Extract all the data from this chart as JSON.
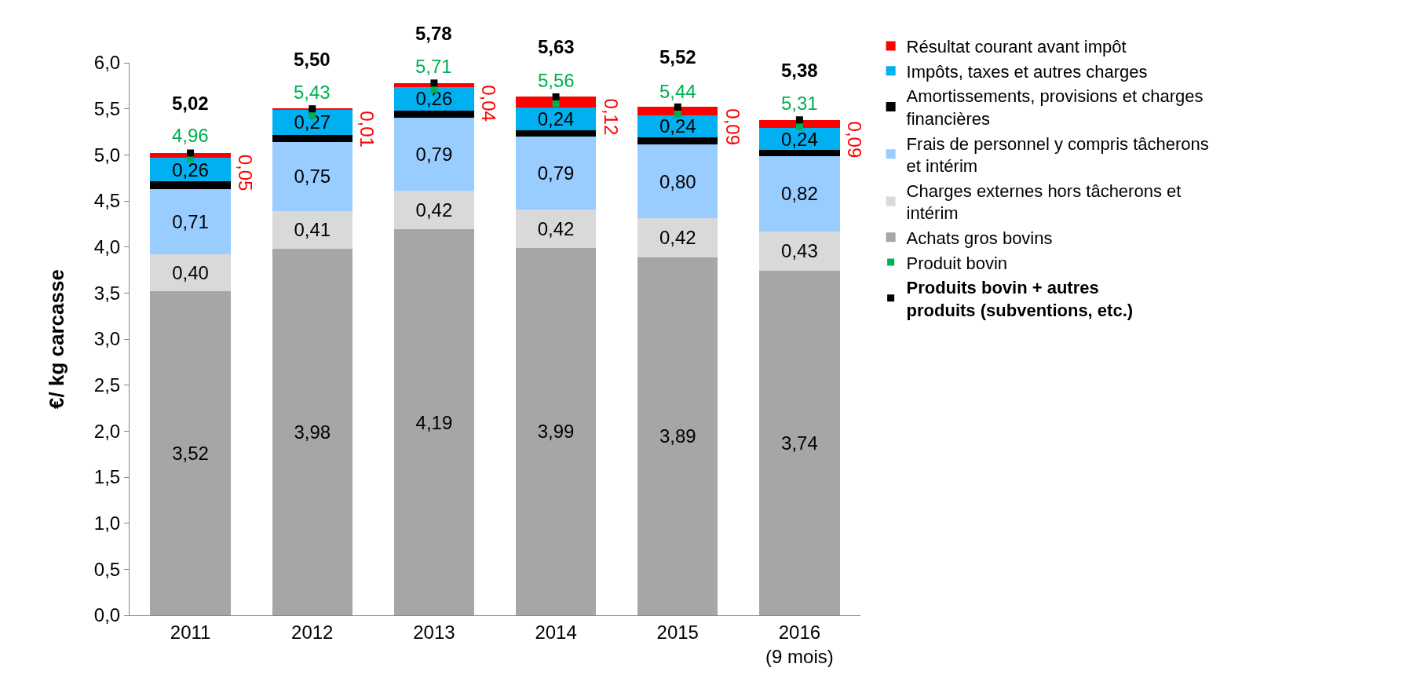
{
  "chart_data": {
    "type": "bar",
    "stacked": true,
    "ylabel": "€/ kg carcasse",
    "categories": [
      "2011",
      "2012",
      "2013",
      "2014",
      "2015",
      "2016\n(9 mois)"
    ],
    "ylim": [
      0,
      6
    ],
    "yticks": [
      {
        "value": 0,
        "label": "0,0"
      },
      {
        "value": 0.5,
        "label": "0,5"
      },
      {
        "value": 1,
        "label": "1,0"
      },
      {
        "value": 1.5,
        "label": "1,5"
      },
      {
        "value": 2,
        "label": "2,0"
      },
      {
        "value": 2.5,
        "label": "2,5"
      },
      {
        "value": 3,
        "label": "3,0"
      },
      {
        "value": 3.5,
        "label": "3,5"
      },
      {
        "value": 4,
        "label": "4,0"
      },
      {
        "value": 4.5,
        "label": "4,5"
      },
      {
        "value": 5,
        "label": "5,0"
      },
      {
        "value": 5.5,
        "label": "5,5"
      },
      {
        "value": 6,
        "label": "6,0"
      }
    ],
    "grid": false,
    "legend": "right",
    "series": [
      {
        "name": "Achats gros bovins",
        "color": "#a6a6a6",
        "values": [
          3.52,
          3.98,
          4.19,
          3.99,
          3.89,
          3.74
        ],
        "value_labels": [
          "3,52",
          "3,98",
          "4,19",
          "3,99",
          "3,89",
          "3,74"
        ]
      },
      {
        "name": "Charges externes hors tâcherons et intérim",
        "color": "#d9d9d9",
        "values": [
          0.4,
          0.41,
          0.42,
          0.42,
          0.42,
          0.43
        ],
        "value_labels": [
          "0,40",
          "0,41",
          "0,42",
          "0,42",
          "0,42",
          "0,43"
        ]
      },
      {
        "name": "Frais de personnel y compris tâcherons et intérim",
        "color": "#99ccff",
        "values": [
          0.71,
          0.75,
          0.79,
          0.79,
          0.8,
          0.82
        ],
        "value_labels": [
          "0,71",
          "0,75",
          "0,79",
          "0,79",
          "0,80",
          "0,82"
        ]
      },
      {
        "name": "Amortissements, provisions et charges financières",
        "color": "#000000",
        "values": [
          0.08,
          0.08,
          0.08,
          0.07,
          0.08,
          0.06
        ]
      },
      {
        "name": "Impôts, taxes et autres charges",
        "color": "#00b0f0",
        "values": [
          0.26,
          0.27,
          0.26,
          0.24,
          0.24,
          0.24
        ],
        "value_labels": [
          "0,26",
          "0,27",
          "0,26",
          "0,24",
          "0,24",
          "0,24"
        ]
      },
      {
        "name": "Résultat courant avant impôt",
        "color": "#ff0000",
        "values": [
          0.05,
          0.01,
          0.04,
          0.12,
          0.09,
          0.09
        ],
        "value_labels": [
          "0,05",
          "0,01",
          "0,04",
          "0,12",
          "0,09",
          "0,09"
        ]
      },
      {
        "name": "Produit bovin",
        "type": "scatter",
        "color": "#00b050",
        "values": [
          4.96,
          5.43,
          5.71,
          5.56,
          5.44,
          5.31
        ],
        "value_labels": [
          "4,96",
          "5,43",
          "5,71",
          "5,56",
          "5,44",
          "5,31"
        ]
      },
      {
        "name": "Produits bovin + autres produits (subventions, etc.)",
        "type": "scatter",
        "color": "#000000",
        "values": [
          5.02,
          5.5,
          5.78,
          5.63,
          5.52,
          5.38
        ],
        "value_labels": [
          "5,02",
          "5,50",
          "5,78",
          "5,63",
          "5,52",
          "5,38"
        ]
      }
    ]
  }
}
